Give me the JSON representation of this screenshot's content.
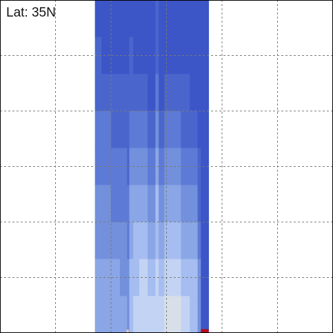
{
  "chart_data": {
    "type": "heatmap",
    "title": "",
    "xlabel": "",
    "ylabel": "",
    "annotation": "Lat: 35N",
    "grid": true,
    "legend": "none",
    "xlim": [
      0,
      6
    ],
    "ylim": [
      0,
      6
    ],
    "colormap": [
      "#3c56c8",
      "#4a66cc",
      "#5d7ad6",
      "#7390dd",
      "#8aa6e6",
      "#a5bdf0",
      "#c3d3f3",
      "#d9dfe8",
      "#f0c8b0",
      "#d43a2a",
      "#b40a1a"
    ],
    "data_extent": {
      "x": [
        1.71,
        3.76
      ],
      "y": [
        0,
        6
      ]
    },
    "columns": [
      {
        "x0": 1.71,
        "x1": 1.83,
        "levels": [
          0,
          1,
          1,
          2,
          2,
          3,
          3,
          4,
          4
        ]
      },
      {
        "x0": 1.83,
        "x1": 2.0,
        "levels": [
          0,
          0,
          1,
          2,
          2,
          3,
          3,
          4,
          4
        ]
      },
      {
        "x0": 2.0,
        "x1": 2.16,
        "levels": [
          0,
          0,
          1,
          1,
          2,
          2,
          3,
          4,
          4
        ]
      },
      {
        "x0": 2.16,
        "x1": 2.29,
        "levels": [
          0,
          0,
          1,
          1,
          2,
          2,
          3,
          3,
          4
        ]
      },
      {
        "x0": 2.29,
        "x1": 2.33,
        "levels": [
          0,
          0,
          1,
          1,
          1,
          2,
          2,
          3,
          3
        ]
      },
      {
        "x0": 2.33,
        "x1": 2.4,
        "levels": [
          0,
          1,
          1,
          2,
          3,
          4,
          4,
          5,
          5
        ]
      },
      {
        "x0": 2.4,
        "x1": 2.51,
        "levels": [
          0,
          0,
          1,
          2,
          3,
          4,
          5,
          5,
          6
        ]
      },
      {
        "x0": 2.51,
        "x1": 2.66,
        "levels": [
          0,
          0,
          1,
          2,
          3,
          4,
          5,
          6,
          6
        ]
      },
      {
        "x0": 2.66,
        "x1": 2.8,
        "levels": [
          0,
          0,
          0,
          1,
          2,
          3,
          4,
          5,
          6
        ]
      },
      {
        "x0": 2.8,
        "x1": 2.86,
        "levels": [
          1,
          1,
          2,
          3,
          4,
          5,
          5,
          6,
          6
        ]
      },
      {
        "x0": 2.86,
        "x1": 2.96,
        "levels": [
          0,
          0,
          0,
          1,
          2,
          3,
          4,
          5,
          6
        ]
      },
      {
        "x0": 2.96,
        "x1": 3.1,
        "levels": [
          0,
          0,
          1,
          2,
          3,
          4,
          5,
          6,
          7
        ]
      },
      {
        "x0": 3.1,
        "x1": 3.26,
        "levels": [
          0,
          0,
          1,
          2,
          3,
          4,
          5,
          6,
          7
        ]
      },
      {
        "x0": 3.26,
        "x1": 3.42,
        "levels": [
          0,
          0,
          1,
          1,
          2,
          3,
          4,
          5,
          6
        ]
      },
      {
        "x0": 3.42,
        "x1": 3.56,
        "levels": [
          0,
          0,
          0,
          1,
          2,
          3,
          4,
          5,
          5
        ]
      },
      {
        "x0": 3.56,
        "x1": 3.62,
        "levels": [
          0,
          0,
          0,
          0,
          1,
          1,
          2,
          3,
          3
        ]
      },
      {
        "x0": 3.62,
        "x1": 3.76,
        "levels": [
          0,
          0,
          0,
          0,
          0,
          0,
          0,
          0,
          0
        ]
      }
    ],
    "hotspots": [
      {
        "x0": 2.28,
        "x1": 2.32,
        "y0": 0.0,
        "y1": 0.06,
        "level": 8
      },
      {
        "x0": 3.62,
        "x1": 3.76,
        "y0": 0.0,
        "y1": 0.07,
        "level": 10
      }
    ]
  }
}
